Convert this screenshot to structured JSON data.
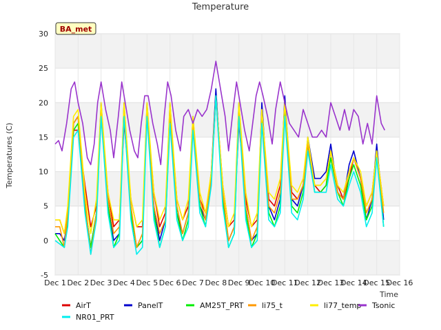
{
  "chart_data": {
    "type": "line",
    "title": "Temperature",
    "xlabel": "Time",
    "ylabel": "Temperatures (C)",
    "badge": "BA_met",
    "ylim": [
      -5,
      30
    ],
    "yticks": [
      -5,
      0,
      5,
      10,
      15,
      20,
      25,
      30
    ],
    "xlim": [
      1,
      16
    ],
    "xticks": [
      {
        "pos": 1,
        "label": "Dec 1"
      },
      {
        "pos": 2,
        "label": "Dec 2"
      },
      {
        "pos": 3,
        "label": "Dec 3"
      },
      {
        "pos": 4,
        "label": "Dec 4"
      },
      {
        "pos": 5,
        "label": "Dec 5"
      },
      {
        "pos": 6,
        "label": "Dec 6"
      },
      {
        "pos": 7,
        "label": "Dec 7"
      },
      {
        "pos": 8,
        "label": "Dec 8"
      },
      {
        "pos": 9,
        "label": "Dec 9"
      },
      {
        "pos": 10,
        "label": "Dec 10"
      },
      {
        "pos": 11,
        "label": "Dec 11"
      },
      {
        "pos": 12,
        "label": "Dec 12"
      },
      {
        "pos": 13,
        "label": "Dec 13"
      },
      {
        "pos": 14,
        "label": "Dec 14"
      },
      {
        "pos": 15,
        "label": "Dec 15"
      },
      {
        "pos": 16,
        "label": "Dec 16"
      }
    ],
    "grid": true,
    "legend_position": "bottom",
    "series": [
      {
        "name": "AirT",
        "color": "#dd0000",
        "x": [
          1.0,
          1.2,
          1.4,
          1.55,
          1.8,
          2.0,
          2.3,
          2.55,
          2.8,
          3.0,
          3.3,
          3.55,
          3.8,
          4.0,
          4.3,
          4.55,
          4.8,
          5.0,
          5.3,
          5.55,
          5.8,
          6.0,
          6.3,
          6.55,
          6.8,
          7.0,
          7.3,
          7.55,
          7.8,
          8.0,
          8.3,
          8.55,
          8.8,
          9.0,
          9.3,
          9.55,
          9.8,
          10.0,
          10.3,
          10.55,
          10.8,
          11.0,
          11.3,
          11.55,
          11.8,
          12.0,
          12.3,
          12.55,
          12.8,
          13.0,
          13.3,
          13.55,
          13.8,
          14.0,
          14.3,
          14.55,
          14.8,
          15.0,
          15.3
        ],
        "y": [
          3,
          3,
          1,
          4,
          16,
          16,
          8,
          2,
          5,
          18,
          7,
          2,
          3,
          17,
          6,
          2,
          2,
          19,
          7,
          2,
          4,
          19,
          6,
          3,
          5,
          17,
          6,
          4,
          9,
          21,
          8,
          2,
          3,
          17,
          6,
          2,
          3,
          18,
          6,
          5,
          8,
          19,
          7,
          6,
          8,
          14,
          8,
          7,
          8,
          13,
          8,
          6,
          9,
          12,
          9,
          5,
          7,
          13,
          5
        ]
      },
      {
        "name": "PanelT",
        "color": "#0000cc",
        "x": [
          1.0,
          1.2,
          1.4,
          1.55,
          1.8,
          2.0,
          2.3,
          2.55,
          2.8,
          3.0,
          3.3,
          3.55,
          3.8,
          4.0,
          4.3,
          4.55,
          4.8,
          5.0,
          5.3,
          5.55,
          5.8,
          6.0,
          6.3,
          6.55,
          6.8,
          7.0,
          7.3,
          7.55,
          7.8,
          8.0,
          8.3,
          8.55,
          8.8,
          9.0,
          9.3,
          9.55,
          9.8,
          10.0,
          10.3,
          10.55,
          10.8,
          11.0,
          11.3,
          11.55,
          11.8,
          12.0,
          12.3,
          12.55,
          12.8,
          13.0,
          13.3,
          13.55,
          13.8,
          14.0,
          14.3,
          14.55,
          14.8,
          15.0,
          15.3
        ],
        "y": [
          1,
          1,
          0,
          3,
          17,
          18,
          5,
          -1,
          4,
          20,
          5,
          0,
          1,
          20,
          4,
          -1,
          0,
          20,
          5,
          0,
          3,
          20,
          4,
          1,
          4,
          18,
          5,
          3,
          10,
          22,
          6,
          0,
          2,
          20,
          5,
          0,
          1,
          20,
          5,
          3,
          6,
          21,
          6,
          5,
          8,
          15,
          9,
          9,
          10,
          14,
          7,
          6,
          11,
          13,
          9,
          3,
          6,
          14,
          3
        ]
      },
      {
        "name": "AM25T_PRT",
        "color": "#00ee00",
        "x": [
          1.0,
          1.2,
          1.4,
          1.55,
          1.8,
          2.0,
          2.3,
          2.55,
          2.8,
          3.0,
          3.3,
          3.55,
          3.8,
          4.0,
          4.3,
          4.55,
          4.8,
          5.0,
          5.3,
          5.55,
          5.8,
          6.0,
          6.3,
          6.55,
          6.8,
          7.0,
          7.3,
          7.55,
          7.8,
          8.0,
          8.3,
          8.55,
          8.8,
          9.0,
          9.3,
          9.55,
          9.8,
          10.0,
          10.3,
          10.55,
          10.8,
          11.0,
          11.3,
          11.55,
          11.8,
          12.0,
          12.3,
          12.55,
          12.8,
          13.0,
          13.3,
          13.55,
          13.8,
          14.0,
          14.3,
          14.55,
          14.8,
          15.0,
          15.3
        ],
        "y": [
          1,
          0,
          -1,
          3,
          16,
          17,
          5,
          -1,
          4,
          19,
          5,
          -1,
          1,
          19,
          4,
          -1,
          0,
          19,
          4,
          -1,
          2,
          18,
          4,
          0,
          3,
          17,
          5,
          2,
          9,
          21,
          6,
          -1,
          1,
          19,
          4,
          -1,
          1,
          18,
          4,
          2,
          5,
          19,
          5,
          4,
          7,
          14,
          7,
          7,
          8,
          12,
          7,
          5,
          9,
          11,
          8,
          3,
          5,
          13,
          2
        ]
      },
      {
        "name": "li75_t",
        "color": "#ff9900",
        "x": [
          1.0,
          1.2,
          1.4,
          1.55,
          1.8,
          2.0,
          2.3,
          2.55,
          2.8,
          3.0,
          3.3,
          3.55,
          3.8,
          4.0,
          4.3,
          4.55,
          4.8,
          5.0,
          5.3,
          5.55,
          5.8,
          6.0,
          6.3,
          6.55,
          6.8,
          7.0,
          7.3,
          7.55,
          7.8,
          8.0,
          8.3,
          8.55,
          8.8,
          9.0,
          9.3,
          9.55,
          9.8,
          10.0,
          10.3,
          10.55,
          10.8,
          11.0,
          11.3,
          11.55,
          11.8,
          12.0,
          12.3,
          12.55,
          12.8,
          13.0,
          13.3,
          13.55,
          13.8,
          14.0,
          14.3,
          14.55,
          14.8,
          15.0,
          15.3
        ],
        "y": [
          2,
          2,
          -1,
          4,
          17,
          18,
          6,
          -2,
          4,
          19,
          6,
          1,
          2,
          19,
          5,
          -1,
          1,
          19,
          5,
          1,
          3,
          19,
          5,
          1,
          4,
          17,
          6,
          3,
          9,
          21,
          7,
          0,
          2,
          19,
          5,
          0,
          2,
          19,
          5,
          4,
          7,
          20,
          6,
          6,
          8,
          14,
          8,
          8,
          9,
          13,
          7,
          6,
          10,
          12,
          9,
          4,
          6,
          13,
          4
        ]
      },
      {
        "name": "li77_temp",
        "color": "#ffee00",
        "x": [
          1.0,
          1.2,
          1.4,
          1.55,
          1.8,
          2.0,
          2.3,
          2.55,
          2.8,
          3.0,
          3.3,
          3.55,
          3.8,
          4.0,
          4.3,
          4.55,
          4.8,
          5.0,
          5.3,
          5.55,
          5.8,
          6.0,
          6.3,
          6.55,
          6.8,
          7.0,
          7.3,
          7.55,
          7.8,
          8.0,
          8.3,
          8.55,
          8.8,
          9.0,
          9.3,
          9.55,
          9.8,
          10.0,
          10.3,
          10.55,
          10.8,
          11.0,
          11.3,
          11.55,
          11.8,
          12.0,
          12.3,
          12.55,
          12.8,
          13.0,
          13.3,
          13.55,
          13.8,
          14.0,
          14.3,
          14.55,
          14.8,
          15.0,
          15.3
        ],
        "y": [
          3,
          3,
          1,
          5,
          18,
          19,
          7,
          1,
          6,
          20,
          7,
          3,
          3,
          20,
          6,
          2,
          3,
          20,
          7,
          3,
          5,
          20,
          6,
          3,
          6,
          18,
          7,
          4,
          10,
          21,
          8,
          2,
          4,
          20,
          7,
          2,
          4,
          19,
          7,
          6,
          9,
          20,
          8,
          7,
          9,
          15,
          8,
          8,
          9,
          13,
          8,
          7,
          10,
          12,
          10,
          5,
          7,
          13,
          5
        ]
      },
      {
        "name": "Tsonic",
        "color": "#9933cc",
        "x": [
          1.0,
          1.15,
          1.3,
          1.5,
          1.7,
          1.85,
          2.0,
          2.2,
          2.4,
          2.55,
          2.7,
          2.85,
          3.0,
          3.2,
          3.4,
          3.55,
          3.75,
          3.9,
          4.05,
          4.25,
          4.45,
          4.6,
          4.75,
          4.9,
          5.05,
          5.25,
          5.45,
          5.6,
          5.75,
          5.9,
          6.05,
          6.25,
          6.45,
          6.6,
          6.8,
          7.0,
          7.2,
          7.4,
          7.6,
          7.8,
          8.0,
          8.2,
          8.4,
          8.55,
          8.75,
          8.9,
          9.05,
          9.25,
          9.45,
          9.6,
          9.75,
          9.9,
          10.05,
          10.25,
          10.45,
          10.6,
          10.8,
          11.0,
          11.2,
          11.4,
          11.6,
          11.8,
          12.0,
          12.2,
          12.4,
          12.6,
          12.8,
          13.0,
          13.2,
          13.4,
          13.6,
          13.8,
          14.0,
          14.2,
          14.4,
          14.6,
          14.8,
          15.0,
          15.2,
          15.35
        ],
        "y": [
          14,
          14.5,
          13,
          17,
          22,
          23,
          20,
          17,
          12,
          11,
          14,
          20,
          23,
          19,
          16,
          12,
          18,
          23,
          20,
          16,
          13,
          12,
          17,
          21,
          21,
          17,
          14,
          11,
          18,
          23,
          21,
          16,
          13,
          18,
          19,
          17,
          19,
          18,
          19,
          22,
          26,
          22,
          18,
          13,
          19,
          23,
          20,
          16,
          13,
          17,
          21,
          23,
          21,
          18,
          14,
          19,
          23,
          20,
          17,
          16,
          15,
          19,
          17,
          15,
          15,
          16,
          15,
          20,
          18,
          16,
          19,
          16,
          19,
          18,
          14,
          17,
          14,
          21,
          17,
          16
        ]
      },
      {
        "name": "NR01_PRT",
        "color": "#00eeee",
        "x": [
          1.0,
          1.2,
          1.4,
          1.55,
          1.8,
          2.0,
          2.3,
          2.55,
          2.8,
          3.0,
          3.3,
          3.55,
          3.8,
          4.0,
          4.3,
          4.55,
          4.8,
          5.0,
          5.3,
          5.55,
          5.8,
          6.0,
          6.3,
          6.55,
          6.8,
          7.0,
          7.3,
          7.55,
          7.8,
          8.0,
          8.3,
          8.55,
          8.8,
          9.0,
          9.3,
          9.55,
          9.8,
          10.0,
          10.3,
          10.55,
          10.8,
          11.0,
          11.3,
          11.55,
          11.8,
          12.0,
          12.3,
          12.55,
          12.8,
          13.0,
          13.3,
          13.55,
          13.8,
          14.0,
          14.3,
          14.55,
          14.8,
          15.0,
          15.3
        ],
        "y": [
          0,
          -0.5,
          -1,
          2,
          15,
          16,
          4,
          -2,
          3,
          18,
          4,
          -1,
          0,
          18,
          3,
          -2,
          -1,
          18,
          3,
          -1,
          2,
          17,
          3,
          0,
          2,
          16,
          4,
          2,
          8,
          21,
          5,
          -1,
          1,
          18,
          3,
          -1,
          0,
          17,
          3,
          2,
          4,
          18,
          4,
          3,
          6,
          13,
          7,
          7,
          7,
          11,
          6,
          5,
          8,
          10,
          7,
          2,
          4,
          12,
          2
        ]
      }
    ]
  }
}
